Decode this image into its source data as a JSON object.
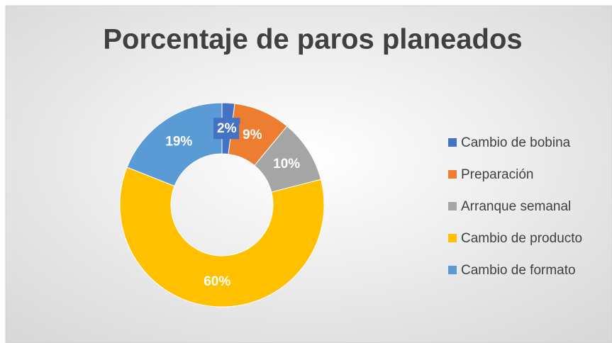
{
  "chart_data": {
    "type": "donut",
    "title": "Porcentaje de paros planeados",
    "categories": [
      "Cambio de bobina",
      "Preparación",
      "Arranque semanal",
      "Cambio de producto",
      "Cambio de formato"
    ],
    "values": [
      2,
      9,
      10,
      60,
      19
    ],
    "value_labels": [
      "2%",
      "9%",
      "10%",
      "60%",
      "19%"
    ],
    "colors": [
      "#4472c4",
      "#ed7d31",
      "#a5a5a5",
      "#ffc000",
      "#5b9bd5"
    ],
    "legend": "right"
  }
}
